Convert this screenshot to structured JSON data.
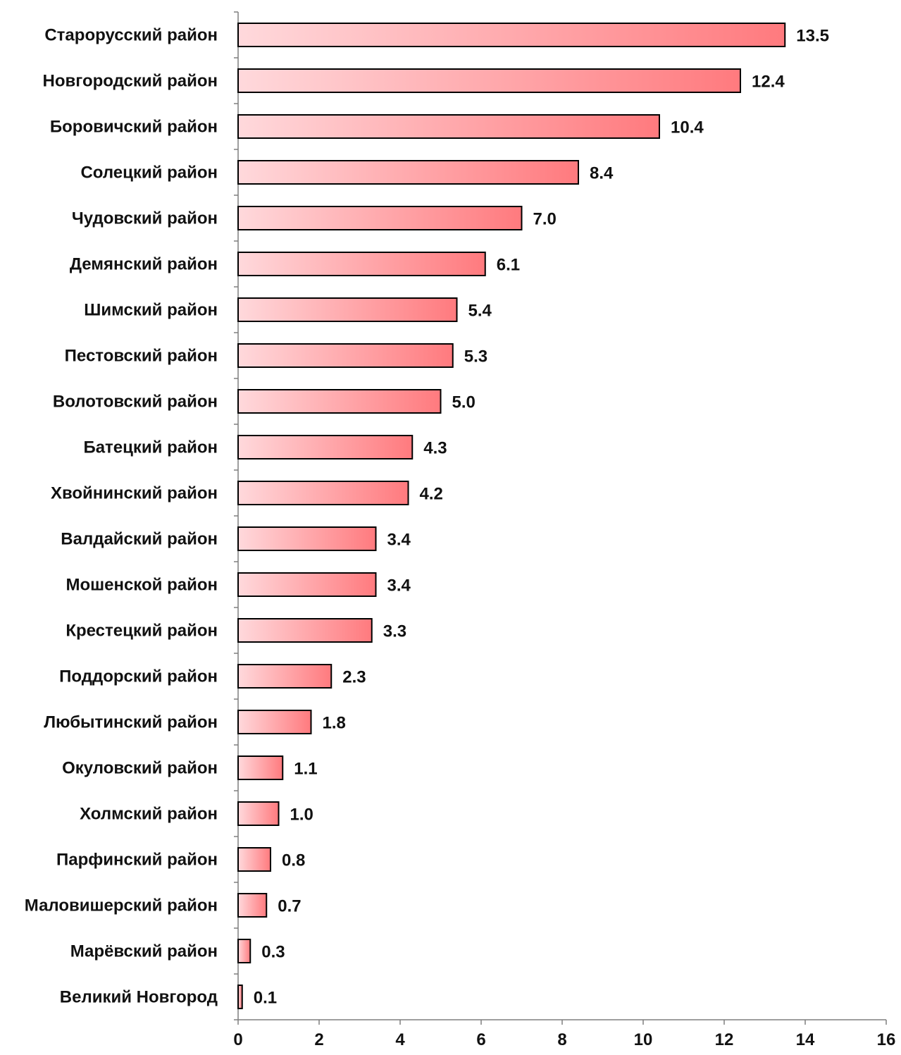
{
  "chart_data": {
    "type": "bar",
    "orientation": "horizontal",
    "categories": [
      "Старорусский район",
      "Новгородский район",
      "Боровичский район",
      "Солецкий район",
      "Чудовский район",
      "Демянский район",
      "Шимский район",
      "Пестовский район",
      "Волотовский район",
      "Батецкий район",
      "Хвойнинский район",
      "Валдайский район",
      "Мошенской район",
      "Крестецкий район",
      "Поддорский район",
      "Любытинский район",
      "Окуловский район",
      "Холмский район",
      "Парфинский район",
      "Маловишерский район",
      "Марёвский район",
      "Великий Новгород"
    ],
    "values": [
      13.5,
      12.4,
      10.4,
      8.4,
      7.0,
      6.1,
      5.4,
      5.3,
      5.0,
      4.3,
      4.2,
      3.4,
      3.4,
      3.3,
      2.3,
      1.8,
      1.1,
      1.0,
      0.8,
      0.7,
      0.3,
      0.1
    ],
    "value_labels": [
      "13.5",
      "12.4",
      "10.4",
      "8.4",
      "7.0",
      "6.1",
      "5.4",
      "5.3",
      "5.0",
      "4.3",
      "4.2",
      "3.4",
      "3.4",
      "3.3",
      "2.3",
      "1.8",
      "1.1",
      "1.0",
      "0.8",
      "0.7",
      "0.3",
      "0.1"
    ],
    "xlim": [
      0,
      16
    ],
    "x_ticks": [
      "0",
      "2",
      "4",
      "6",
      "8",
      "10",
      "12",
      "14",
      "16"
    ],
    "title": "",
    "xlabel": "",
    "ylabel": "",
    "grid": false,
    "legend": "none",
    "colors": {
      "bar_gradient_start": "#ffd9dc",
      "bar_gradient_end": "#ff7a7e",
      "bar_outline": "#000000",
      "axis": "#7f7f7f",
      "text": "#111111"
    }
  }
}
